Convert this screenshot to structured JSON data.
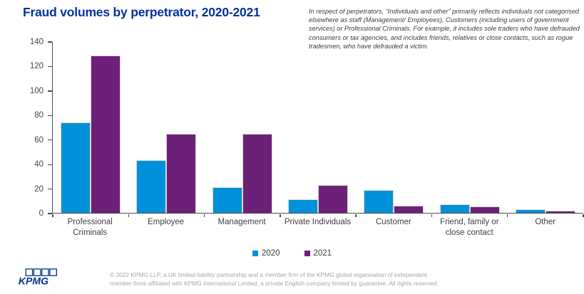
{
  "page": {
    "title": "Fraud volumes by perpetrator, 2020-2021",
    "annotation": "In respect of perpetrators, “Individuals and other” primarily reflects individuals not categorised elsewhere as staff (Management/ Employees), Customers (including users of government services) or Professional Criminals. For example, it includes sole traders who have defrauded consumers or tax agencies, and includes friends, relatives or close contacts, such as rogue tradesmen, who have defrauded a victim."
  },
  "colors": {
    "title_blue": "#0033A0",
    "kpmg_logo_blue": "#00338D",
    "bar_2020_blue": "#0091DA",
    "bar_2021_purple": "#6D2077",
    "axis_gray": "#4d4d4d",
    "label_text": "#404040",
    "footer_text": "#A6A6A6"
  },
  "chart_data": {
    "type": "bar",
    "title": "Fraud volumes by perpetrator, 2020-2021",
    "categories": [
      "Professional Criminals",
      "Employee",
      "Management",
      "Private Individuals",
      "Customer",
      "Friend, family or close contact",
      "Other"
    ],
    "series": [
      {
        "name": "2020",
        "color": "#0091DA",
        "values": [
          74,
          43,
          21,
          11,
          19,
          7,
          3
        ]
      },
      {
        "name": "2021",
        "color": "#6D2077",
        "values": [
          129,
          65,
          65,
          23,
          6,
          5,
          2
        ]
      }
    ],
    "xlabel": "",
    "ylabel": "",
    "ylim": [
      0,
      140
    ],
    "yticks": [
      0,
      20,
      40,
      60,
      80,
      100,
      120,
      140
    ],
    "grid": false,
    "legend_position": "bottom"
  },
  "footer": {
    "logo_text": "KPMG",
    "copyright_line1": "© 2022 KPMG LLP, a UK limited liability partnership and a member firm of the KPMG global organisation of independent",
    "copyright_line2": "member firms affiliated with KPMG International Limited, a private English company limited by guarantee. All rights reserved."
  }
}
